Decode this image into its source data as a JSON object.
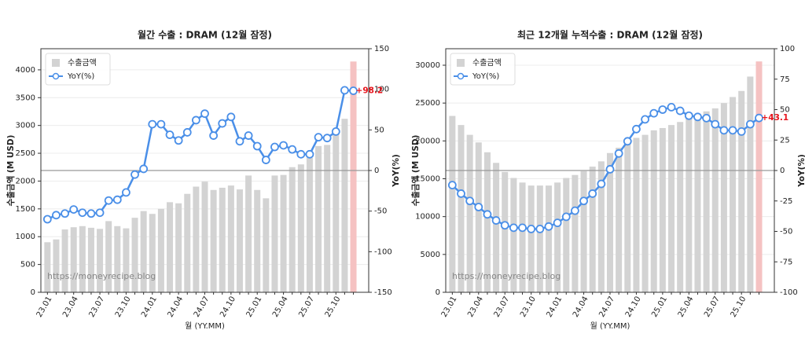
{
  "chart_data": [
    {
      "type": "bar-line",
      "title": "월간 수출 : DRAM (12월 잠정)",
      "ylabel": "수출금액 (M USD)",
      "y2label": "YoY(%)",
      "xlabel": "월 (YY.MM)",
      "watermark": "https://moneyrecipe.blog",
      "annotation": "+98.2",
      "categories": [
        "23.01",
        null,
        null,
        "23.04",
        null,
        null,
        "23.07",
        null,
        null,
        "23.10",
        null,
        null,
        "24.01",
        null,
        null,
        "24.04",
        null,
        null,
        "24.07",
        null,
        null,
        "24.10",
        null,
        null,
        "25.01",
        null,
        null,
        "25.04",
        null,
        null,
        "25.07",
        null,
        null,
        "25.10",
        null,
        null
      ],
      "series": [
        {
          "name": "수출금액",
          "color": "#d3d3d3",
          "highlight_color": "#f5c2c2",
          "values": [
            900,
            950,
            1130,
            1170,
            1190,
            1160,
            1140,
            1280,
            1190,
            1150,
            1340,
            1460,
            1410,
            1500,
            1620,
            1600,
            1770,
            1900,
            1990,
            1840,
            1880,
            1920,
            1850,
            2100,
            1840,
            1690,
            2100,
            2110,
            2250,
            2300,
            2420,
            2630,
            2650,
            2870,
            3120,
            4150
          ]
        },
        {
          "name": "YoY(%)",
          "color": "#4a8fe8",
          "axis": "y2",
          "values": [
            -60,
            -55,
            -53,
            -48,
            -52,
            -53,
            -52,
            -37,
            -36,
            -27,
            -5,
            2,
            57,
            57,
            44,
            37,
            47,
            62,
            70,
            43,
            58,
            66,
            36,
            43,
            30,
            13,
            29,
            31,
            26,
            20,
            20,
            41,
            40,
            48,
            98.8,
            98.2
          ]
        }
      ],
      "ylim": [
        0,
        4380
      ],
      "yticks": [
        0,
        500,
        1000,
        1500,
        2000,
        2500,
        3000,
        3500,
        4000
      ],
      "y2lim": [
        -150,
        150
      ],
      "y2ticks": [
        -150,
        -100,
        -50,
        0,
        50,
        100,
        150
      ],
      "grid": true
    },
    {
      "type": "bar-line",
      "title": "최근 12개월 누적수출 : DRAM (12월 잠정)",
      "ylabel": "수출금액 (M USD)",
      "y2label": "YoY(%)",
      "xlabel": "월 (YY.MM)",
      "watermark": "https://moneyrecipe.blog",
      "annotation": "+43.1",
      "categories": [
        "23.01",
        null,
        null,
        "23.04",
        null,
        null,
        "23.07",
        null,
        null,
        "23.10",
        null,
        null,
        "24.01",
        null,
        null,
        "24.04",
        null,
        null,
        "24.07",
        null,
        null,
        "24.10",
        null,
        null,
        "25.01",
        null,
        null,
        "25.04",
        null,
        null,
        "25.07",
        null,
        null,
        "25.10",
        null,
        null
      ],
      "series": [
        {
          "name": "수출금액",
          "color": "#d3d3d3",
          "highlight_color": "#f5c2c2",
          "values": [
            23300,
            22100,
            20800,
            19800,
            18500,
            17100,
            15900,
            15100,
            14500,
            14100,
            14100,
            14100,
            14500,
            15100,
            15500,
            16000,
            16600,
            17300,
            18400,
            19100,
            19800,
            20400,
            20800,
            21400,
            21700,
            22100,
            22500,
            23000,
            23400,
            23900,
            24300,
            25000,
            25800,
            26600,
            28500,
            30500
          ]
        },
        {
          "name": "YoY(%)",
          "color": "#4a8fe8",
          "axis": "y2",
          "values": [
            -12,
            -19,
            -25,
            -30,
            -36,
            -41,
            -45,
            -47,
            -47,
            -48,
            -48,
            -46,
            -43,
            -38,
            -33,
            -25,
            -19,
            -11,
            1,
            14,
            24,
            34,
            42,
            47,
            50,
            52,
            49,
            45,
            44,
            43,
            38,
            33,
            33,
            32,
            38,
            43.1
          ]
        }
      ],
      "ylim": [
        0,
        32180
      ],
      "yticks": [
        0,
        5000,
        10000,
        15000,
        20000,
        25000,
        30000
      ],
      "y2lim": [
        -100,
        100
      ],
      "y2ticks": [
        -100,
        -75,
        -50,
        -25,
        0,
        25,
        50,
        75,
        100
      ],
      "grid": true
    }
  ]
}
